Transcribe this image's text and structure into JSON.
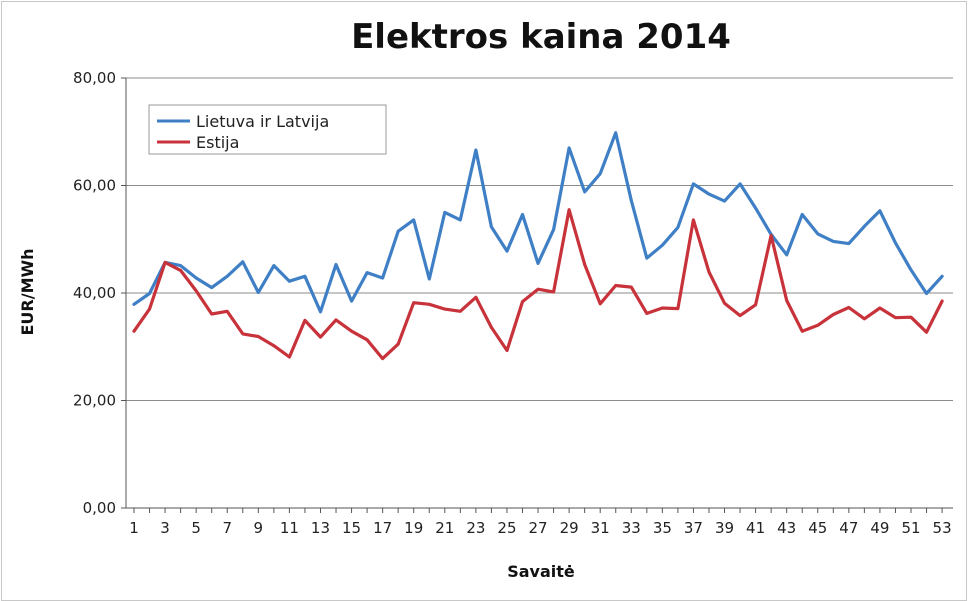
{
  "chart_data": {
    "type": "line",
    "title": "Elektros kaina 2014",
    "xlabel": "Savaitė",
    "ylabel": "EUR/MWh",
    "ylim": [
      0,
      80
    ],
    "yticks": [
      "0,00",
      "20,00",
      "40,00",
      "60,00",
      "80,00"
    ],
    "ytick_values": [
      0,
      20,
      40,
      60,
      80
    ],
    "xticks": [
      "1",
      "3",
      "5",
      "7",
      "9",
      "11",
      "13",
      "15",
      "17",
      "19",
      "21",
      "23",
      "25",
      "27",
      "29",
      "31",
      "33",
      "35",
      "37",
      "39",
      "41",
      "43",
      "45",
      "47",
      "49",
      "51",
      "53"
    ],
    "x": [
      1,
      2,
      3,
      4,
      5,
      6,
      7,
      8,
      9,
      10,
      11,
      12,
      13,
      14,
      15,
      16,
      17,
      18,
      19,
      20,
      21,
      22,
      23,
      24,
      25,
      26,
      27,
      28,
      29,
      30,
      31,
      32,
      33,
      34,
      35,
      36,
      37,
      38,
      39,
      40,
      41,
      42,
      43,
      44,
      45,
      46,
      47,
      48,
      49,
      50,
      51,
      52,
      53
    ],
    "grid": true,
    "legend_position": "top-left",
    "series": [
      {
        "name": "Lietuva ir Latvija",
        "color": "#3f7fc5",
        "values": [
          37.9,
          39.9,
          45.7,
          45.1,
          42.8,
          41.0,
          43.1,
          45.8,
          40.1,
          45.1,
          42.2,
          43.1,
          36.5,
          45.3,
          38.5,
          43.8,
          42.8,
          51.5,
          53.6,
          42.6,
          55.0,
          53.6,
          66.6,
          52.3,
          47.8,
          54.6,
          45.5,
          51.8,
          67.0,
          58.8,
          62.2,
          69.8,
          57.2,
          46.5,
          48.9,
          52.2,
          60.3,
          58.4,
          57.1,
          60.3,
          55.8,
          50.9,
          47.1,
          54.6,
          51.0,
          49.6,
          49.2,
          52.4,
          55.3,
          49.3,
          44.3,
          39.9,
          43.1
        ]
      },
      {
        "name": "Estija",
        "color": "#c8323a",
        "values": [
          32.9,
          37.0,
          45.7,
          44.2,
          40.4,
          36.1,
          36.6,
          32.4,
          31.9,
          30.2,
          28.1,
          34.9,
          31.8,
          35.0,
          32.9,
          31.3,
          27.8,
          30.5,
          38.2,
          37.9,
          37.0,
          36.6,
          39.2,
          33.6,
          29.3,
          38.4,
          40.7,
          40.2,
          55.5,
          45.3,
          38.0,
          41.4,
          41.1,
          36.2,
          37.2,
          37.1,
          53.6,
          43.9,
          38.1,
          35.8,
          37.8,
          50.7,
          38.6,
          32.9,
          34.0,
          36.0,
          37.3,
          35.2,
          37.2,
          35.4,
          35.5,
          32.7,
          38.5
        ]
      }
    ]
  }
}
